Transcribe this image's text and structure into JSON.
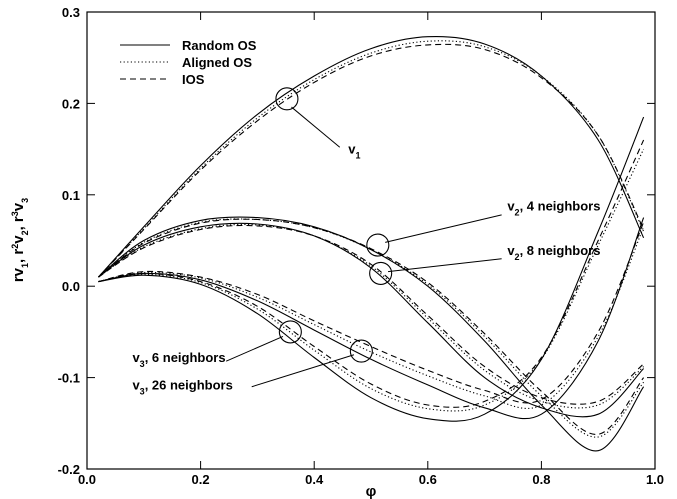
{
  "chart_data": {
    "type": "line",
    "xlabel": "φ",
    "ylabel": {
      "parts": [
        {
          "t": "rv",
          "s": "n"
        },
        {
          "t": "1",
          "s": "sub"
        },
        {
          "t": ",  r",
          "s": "n"
        },
        {
          "t": "2",
          "s": "sup"
        },
        {
          "t": "v",
          "s": "n"
        },
        {
          "t": "2",
          "s": "sub"
        },
        {
          "t": ",  r",
          "s": "n"
        },
        {
          "t": "3",
          "s": "sup"
        },
        {
          "t": "v",
          "s": "n"
        },
        {
          "t": "3",
          "s": "sub"
        }
      ]
    },
    "xlim": [
      0.0,
      1.0
    ],
    "ylim": [
      -0.2,
      0.3
    ],
    "xticks": [
      "0.0",
      "0.2",
      "0.4",
      "0.6",
      "0.8",
      "1.0"
    ],
    "yticks": [
      "-0.2",
      "-0.1",
      "0.0",
      "0.1",
      "0.2",
      "0.3"
    ],
    "legend": {
      "placement": "top-left",
      "entries": [
        {
          "label": "Random OS",
          "dash": "solid"
        },
        {
          "label": "Aligned OS",
          "dash": "dotted"
        },
        {
          "label": "IOS",
          "dash": "dashed"
        }
      ]
    },
    "series": [
      {
        "group": "v1",
        "style": "Random OS",
        "x": [
          0.02,
          0.1,
          0.2,
          0.3,
          0.4,
          0.5,
          0.6,
          0.7,
          0.8,
          0.9,
          0.98
        ],
        "y": [
          0.01,
          0.065,
          0.132,
          0.188,
          0.23,
          0.26,
          0.273,
          0.265,
          0.23,
          0.16,
          0.053
        ]
      },
      {
        "group": "v1",
        "style": "Aligned OS",
        "x": [
          0.02,
          0.1,
          0.2,
          0.3,
          0.4,
          0.5,
          0.6,
          0.7,
          0.8,
          0.9,
          0.98
        ],
        "y": [
          0.01,
          0.063,
          0.129,
          0.184,
          0.226,
          0.255,
          0.268,
          0.262,
          0.23,
          0.165,
          0.06
        ]
      },
      {
        "group": "v1",
        "style": "IOS",
        "x": [
          0.02,
          0.1,
          0.2,
          0.3,
          0.4,
          0.5,
          0.6,
          0.7,
          0.8,
          0.9,
          0.98
        ],
        "y": [
          0.01,
          0.062,
          0.127,
          0.181,
          0.223,
          0.252,
          0.264,
          0.259,
          0.228,
          0.165,
          0.062
        ]
      },
      {
        "group": "v2, 4 neighbors",
        "style": "Random OS",
        "x": [
          0.02,
          0.1,
          0.2,
          0.3,
          0.4,
          0.5,
          0.6,
          0.7,
          0.8,
          0.9,
          0.98
        ],
        "y": [
          0.01,
          0.05,
          0.072,
          0.075,
          0.065,
          0.04,
          0.0,
          -0.06,
          -0.13,
          -0.18,
          -0.11
        ]
      },
      {
        "group": "v2, 4 neighbors",
        "style": "Aligned OS",
        "x": [
          0.02,
          0.1,
          0.2,
          0.3,
          0.4,
          0.5,
          0.6,
          0.7,
          0.8,
          0.9,
          0.98
        ],
        "y": [
          0.01,
          0.048,
          0.07,
          0.073,
          0.064,
          0.04,
          0.002,
          -0.055,
          -0.12,
          -0.165,
          -0.105
        ]
      },
      {
        "group": "v2, 4 neighbors",
        "style": "IOS",
        "x": [
          0.02,
          0.1,
          0.2,
          0.3,
          0.4,
          0.5,
          0.6,
          0.7,
          0.8,
          0.9,
          0.98
        ],
        "y": [
          0.01,
          0.047,
          0.069,
          0.073,
          0.064,
          0.041,
          0.004,
          -0.052,
          -0.115,
          -0.162,
          -0.1
        ]
      },
      {
        "group": "v2, 8 neighbors",
        "style": "Random OS",
        "x": [
          0.02,
          0.1,
          0.2,
          0.3,
          0.4,
          0.5,
          0.6,
          0.7,
          0.8,
          0.9,
          0.98
        ],
        "y": [
          0.01,
          0.045,
          0.065,
          0.068,
          0.055,
          0.02,
          -0.04,
          -0.1,
          -0.133,
          -0.14,
          -0.09
        ]
      },
      {
        "group": "v2, 8 neighbors",
        "style": "Aligned OS",
        "x": [
          0.02,
          0.1,
          0.2,
          0.3,
          0.4,
          0.5,
          0.6,
          0.7,
          0.8,
          0.9,
          0.98
        ],
        "y": [
          0.01,
          0.043,
          0.063,
          0.067,
          0.055,
          0.022,
          -0.035,
          -0.092,
          -0.126,
          -0.13,
          -0.088
        ]
      },
      {
        "group": "v2, 8 neighbors",
        "style": "IOS",
        "x": [
          0.02,
          0.1,
          0.2,
          0.3,
          0.4,
          0.5,
          0.6,
          0.7,
          0.8,
          0.9,
          0.98
        ],
        "y": [
          0.01,
          0.042,
          0.062,
          0.066,
          0.055,
          0.024,
          -0.032,
          -0.088,
          -0.122,
          -0.126,
          -0.085
        ]
      },
      {
        "group": "v3, 6 neighbors",
        "style": "Random OS",
        "x": [
          0.02,
          0.1,
          0.2,
          0.3,
          0.4,
          0.5,
          0.6,
          0.7,
          0.8,
          0.9,
          0.98
        ],
        "y": [
          0.005,
          0.012,
          0.002,
          -0.03,
          -0.078,
          -0.122,
          -0.145,
          -0.14,
          -0.08,
          0.06,
          0.185
        ]
      },
      {
        "group": "v3, 6 neighbors",
        "style": "Aligned OS",
        "x": [
          0.02,
          0.1,
          0.2,
          0.3,
          0.4,
          0.5,
          0.6,
          0.7,
          0.8,
          0.9,
          0.98
        ],
        "y": [
          0.005,
          0.013,
          0.004,
          -0.025,
          -0.07,
          -0.112,
          -0.134,
          -0.13,
          -0.08,
          0.045,
          0.15
        ]
      },
      {
        "group": "v3, 6 neighbors",
        "style": "IOS",
        "x": [
          0.02,
          0.1,
          0.2,
          0.3,
          0.4,
          0.5,
          0.6,
          0.7,
          0.8,
          0.9,
          0.98
        ],
        "y": [
          0.005,
          0.014,
          0.005,
          -0.022,
          -0.066,
          -0.107,
          -0.13,
          -0.126,
          -0.078,
          0.05,
          0.16
        ]
      },
      {
        "group": "v3, 26 neighbors",
        "style": "Random OS",
        "x": [
          0.02,
          0.1,
          0.2,
          0.3,
          0.4,
          0.5,
          0.6,
          0.7,
          0.8,
          0.9,
          0.98
        ],
        "y": [
          0.005,
          0.014,
          0.007,
          -0.016,
          -0.048,
          -0.08,
          -0.108,
          -0.133,
          -0.14,
          -0.06,
          0.075
        ]
      },
      {
        "group": "v3, 26 neighbors",
        "style": "Aligned OS",
        "x": [
          0.02,
          0.1,
          0.2,
          0.3,
          0.4,
          0.5,
          0.6,
          0.7,
          0.8,
          0.9,
          0.98
        ],
        "y": [
          0.005,
          0.015,
          0.009,
          -0.012,
          -0.042,
          -0.072,
          -0.098,
          -0.12,
          -0.13,
          -0.055,
          0.065
        ]
      },
      {
        "group": "v3, 26 neighbors",
        "style": "IOS",
        "x": [
          0.02,
          0.1,
          0.2,
          0.3,
          0.4,
          0.5,
          0.6,
          0.7,
          0.8,
          0.9,
          0.98
        ],
        "y": [
          0.005,
          0.016,
          0.01,
          -0.009,
          -0.038,
          -0.066,
          -0.092,
          -0.114,
          -0.124,
          -0.05,
          0.07
        ]
      }
    ],
    "annotations": [
      {
        "name": "v1",
        "parts": [
          {
            "t": "v",
            "s": "n"
          },
          {
            "t": "1",
            "s": "sub"
          }
        ],
        "target": [
          0.352,
          0.205
        ],
        "label_at": [
          0.46,
          0.145
        ],
        "line_from": [
          0.36,
          0.196
        ],
        "line_to": [
          0.445,
          0.152
        ]
      },
      {
        "name": "v2-4-neighbors",
        "parts": [
          {
            "t": "v",
            "s": "n"
          },
          {
            "t": "2",
            "s": "sub"
          },
          {
            "t": ", 4 neighbors",
            "s": "n"
          }
        ],
        "target": [
          0.512,
          0.045
        ],
        "label_at": [
          0.74,
          0.083
        ],
        "line_from": [
          0.525,
          0.048
        ],
        "line_to": [
          0.73,
          0.078
        ]
      },
      {
        "name": "v2-8-neighbors",
        "parts": [
          {
            "t": "v",
            "s": "n"
          },
          {
            "t": "2",
            "s": "sub"
          },
          {
            "t": ", 8 neighbors",
            "s": "n"
          }
        ],
        "target": [
          0.517,
          0.014
        ],
        "label_at": [
          0.74,
          0.034
        ],
        "line_from": [
          0.53,
          0.016
        ],
        "line_to": [
          0.73,
          0.03
        ]
      },
      {
        "name": "v3-6-neighbors",
        "parts": [
          {
            "t": "v",
            "s": "n"
          },
          {
            "t": "3",
            "s": "sub"
          },
          {
            "t": ", 6 neighbors",
            "s": "n"
          }
        ],
        "target": [
          0.358,
          -0.05
        ],
        "label_at": [
          0.08,
          -0.083
        ],
        "line_from": [
          0.345,
          -0.055
        ],
        "line_to": [
          0.245,
          -0.082
        ]
      },
      {
        "name": "v3-26-neighbors",
        "parts": [
          {
            "t": "v",
            "s": "n"
          },
          {
            "t": "3",
            "s": "sub"
          },
          {
            "t": ", 26 neighbors",
            "s": "n"
          }
        ],
        "target": [
          0.483,
          -0.071
        ],
        "label_at": [
          0.08,
          -0.113
        ],
        "line_from": [
          0.47,
          -0.075
        ],
        "line_to": [
          0.29,
          -0.11
        ]
      }
    ]
  }
}
